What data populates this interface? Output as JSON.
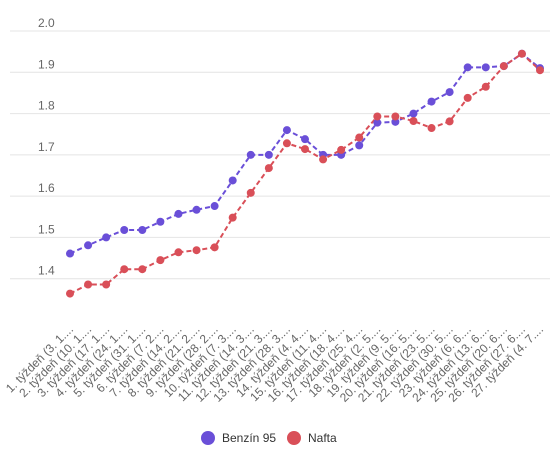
{
  "chart_data": {
    "type": "line",
    "title": "",
    "xlabel": "",
    "ylabel": "",
    "ylim": [
      1.3,
      2.0
    ],
    "yticks": [
      1.4,
      1.5,
      1.6,
      1.7,
      1.8,
      1.9,
      2.0
    ],
    "grid": true,
    "legend_position": "bottom",
    "categories": [
      "1. týždeň (3. 1....",
      "2. týždeň (10. 1....",
      "3. týždeň (17. 1....",
      "4. týždeň (24. 1....",
      "5. týždeň (31. 1....",
      "6. týždeň (7. 2....",
      "7. týždeň (14. 2....",
      "8. týždeň (21. 2....",
      "9. týždeň (28. 2....",
      "10. týždeň (7. 3....",
      "11. týždeň (14. 3....",
      "12. týždeň (21. 3....",
      "13. týždeň (28. 3....",
      "14. týždeň (4. 4....",
      "15. týždeň (11. 4....",
      "16. týždeň (18. 4....",
      "17. týždeň (25. 4....",
      "18. týždeň (2. 5....",
      "19. týždeň (9. 5....",
      "20. týždeň (16. 5....",
      "21. týždeň (23. 5....",
      "22. týždeň (30. 5....",
      "23. týždeň (6. 6....",
      "24. týždeň (13. 6....",
      "25. týždeň (20. 6....",
      "26. týždeň (27. 6....",
      "27. týždeň (4. 7...."
    ],
    "series": [
      {
        "name": "Benzín 95",
        "color": "#6a4fd8",
        "values": [
          1.461,
          1.481,
          1.5,
          1.518,
          1.518,
          1.538,
          1.557,
          1.567,
          1.576,
          1.638,
          1.7,
          1.7,
          1.76,
          1.738,
          1.7,
          1.7,
          1.723,
          1.778,
          1.78,
          1.8,
          1.829,
          1.852,
          1.912,
          1.912,
          1.915,
          1.945,
          1.91
        ]
      },
      {
        "name": "Nafta",
        "color": "#d94f58",
        "values": [
          1.364,
          1.386,
          1.386,
          1.423,
          1.423,
          1.445,
          1.464,
          1.469,
          1.476,
          1.548,
          1.608,
          1.668,
          1.728,
          1.714,
          1.689,
          1.712,
          1.742,
          1.793,
          1.793,
          1.782,
          1.765,
          1.781,
          1.838,
          1.865,
          1.915,
          1.945,
          1.905
        ]
      }
    ]
  }
}
